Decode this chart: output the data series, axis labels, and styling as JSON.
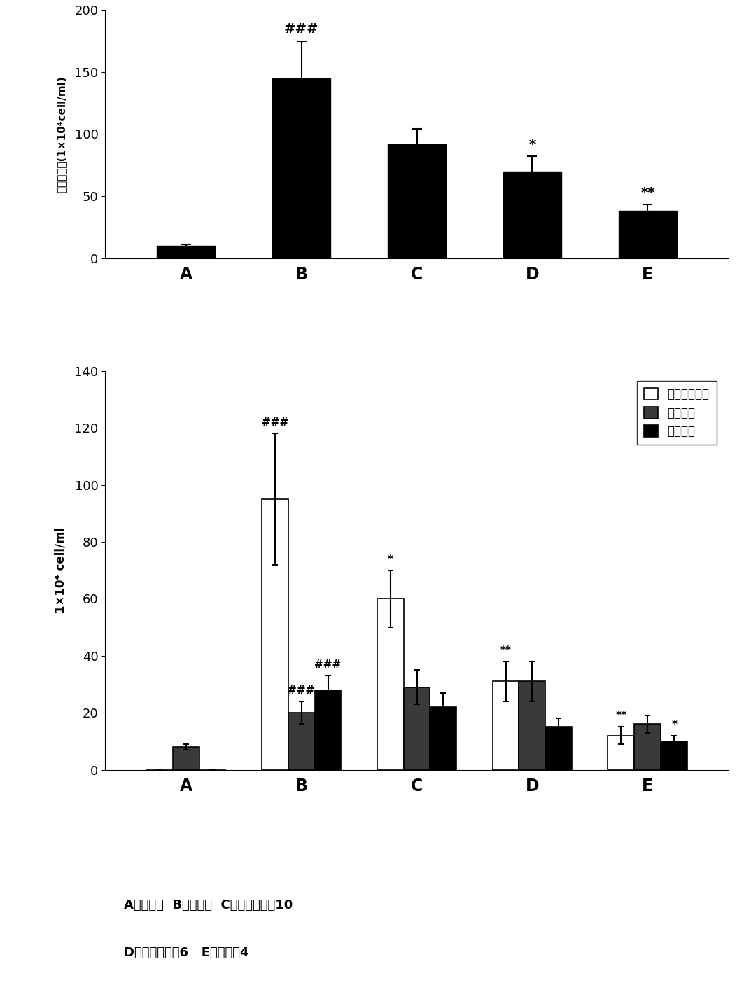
{
  "top_chart": {
    "categories": [
      "A",
      "B",
      "C",
      "D",
      "E"
    ],
    "values": [
      10,
      145,
      92,
      70,
      38
    ],
    "errors": [
      1,
      30,
      12,
      12,
      5
    ],
    "ylim": [
      0,
      200
    ],
    "yticks": [
      0,
      50,
      100,
      150,
      200
    ],
    "bar_color": "#000000",
    "annotations": {
      "B": "###",
      "C": "",
      "D": "*",
      "E": "**"
    }
  },
  "bottom_chart": {
    "categories": [
      "A",
      "B",
      "C",
      "D",
      "E"
    ],
    "series": {
      "eos": {
        "label": "嗜酸性粒细胞",
        "color": "#ffffff",
        "edgecolor": "#000000",
        "values": [
          0,
          95,
          60,
          31,
          12
        ],
        "errors": [
          0,
          23,
          10,
          7,
          3
        ],
        "annotations": {
          "B": "###",
          "C": "*",
          "D": "**",
          "E": "**"
        }
      },
      "lymph": {
        "label": "淡巴细胞",
        "color": "#3a3a3a",
        "edgecolor": "#000000",
        "values": [
          8,
          20,
          29,
          31,
          16
        ],
        "errors": [
          1,
          4,
          6,
          7,
          3
        ],
        "annotations": {
          "B": "###",
          "C": "",
          "D": "",
          "E": ""
        }
      },
      "macro": {
        "label": "巨噬细胞",
        "color": "#000000",
        "edgecolor": "#000000",
        "values": [
          0,
          28,
          22,
          15,
          10
        ],
        "errors": [
          0,
          5,
          5,
          3,
          2
        ],
        "annotations": {
          "B": "###",
          "C": "",
          "D": "",
          "E": "*"
        }
      }
    },
    "ylim": [
      0,
      140
    ],
    "yticks": [
      0,
      20,
      40,
      60,
      80,
      100,
      120,
      140
    ]
  },
  "top_ylabel_chars": [
    "白",
    "细",
    "胞",
    "总",
    "数",
    "(1×10⁴",
    "cell/ml)"
  ],
  "bottom_ylabel": "1×10⁴ cell/ml",
  "footnote_line1": "A：对照组  B：模型组  C：对照实施例10",
  "footnote_line2": "D：对照实施例6   E：实施例4"
}
